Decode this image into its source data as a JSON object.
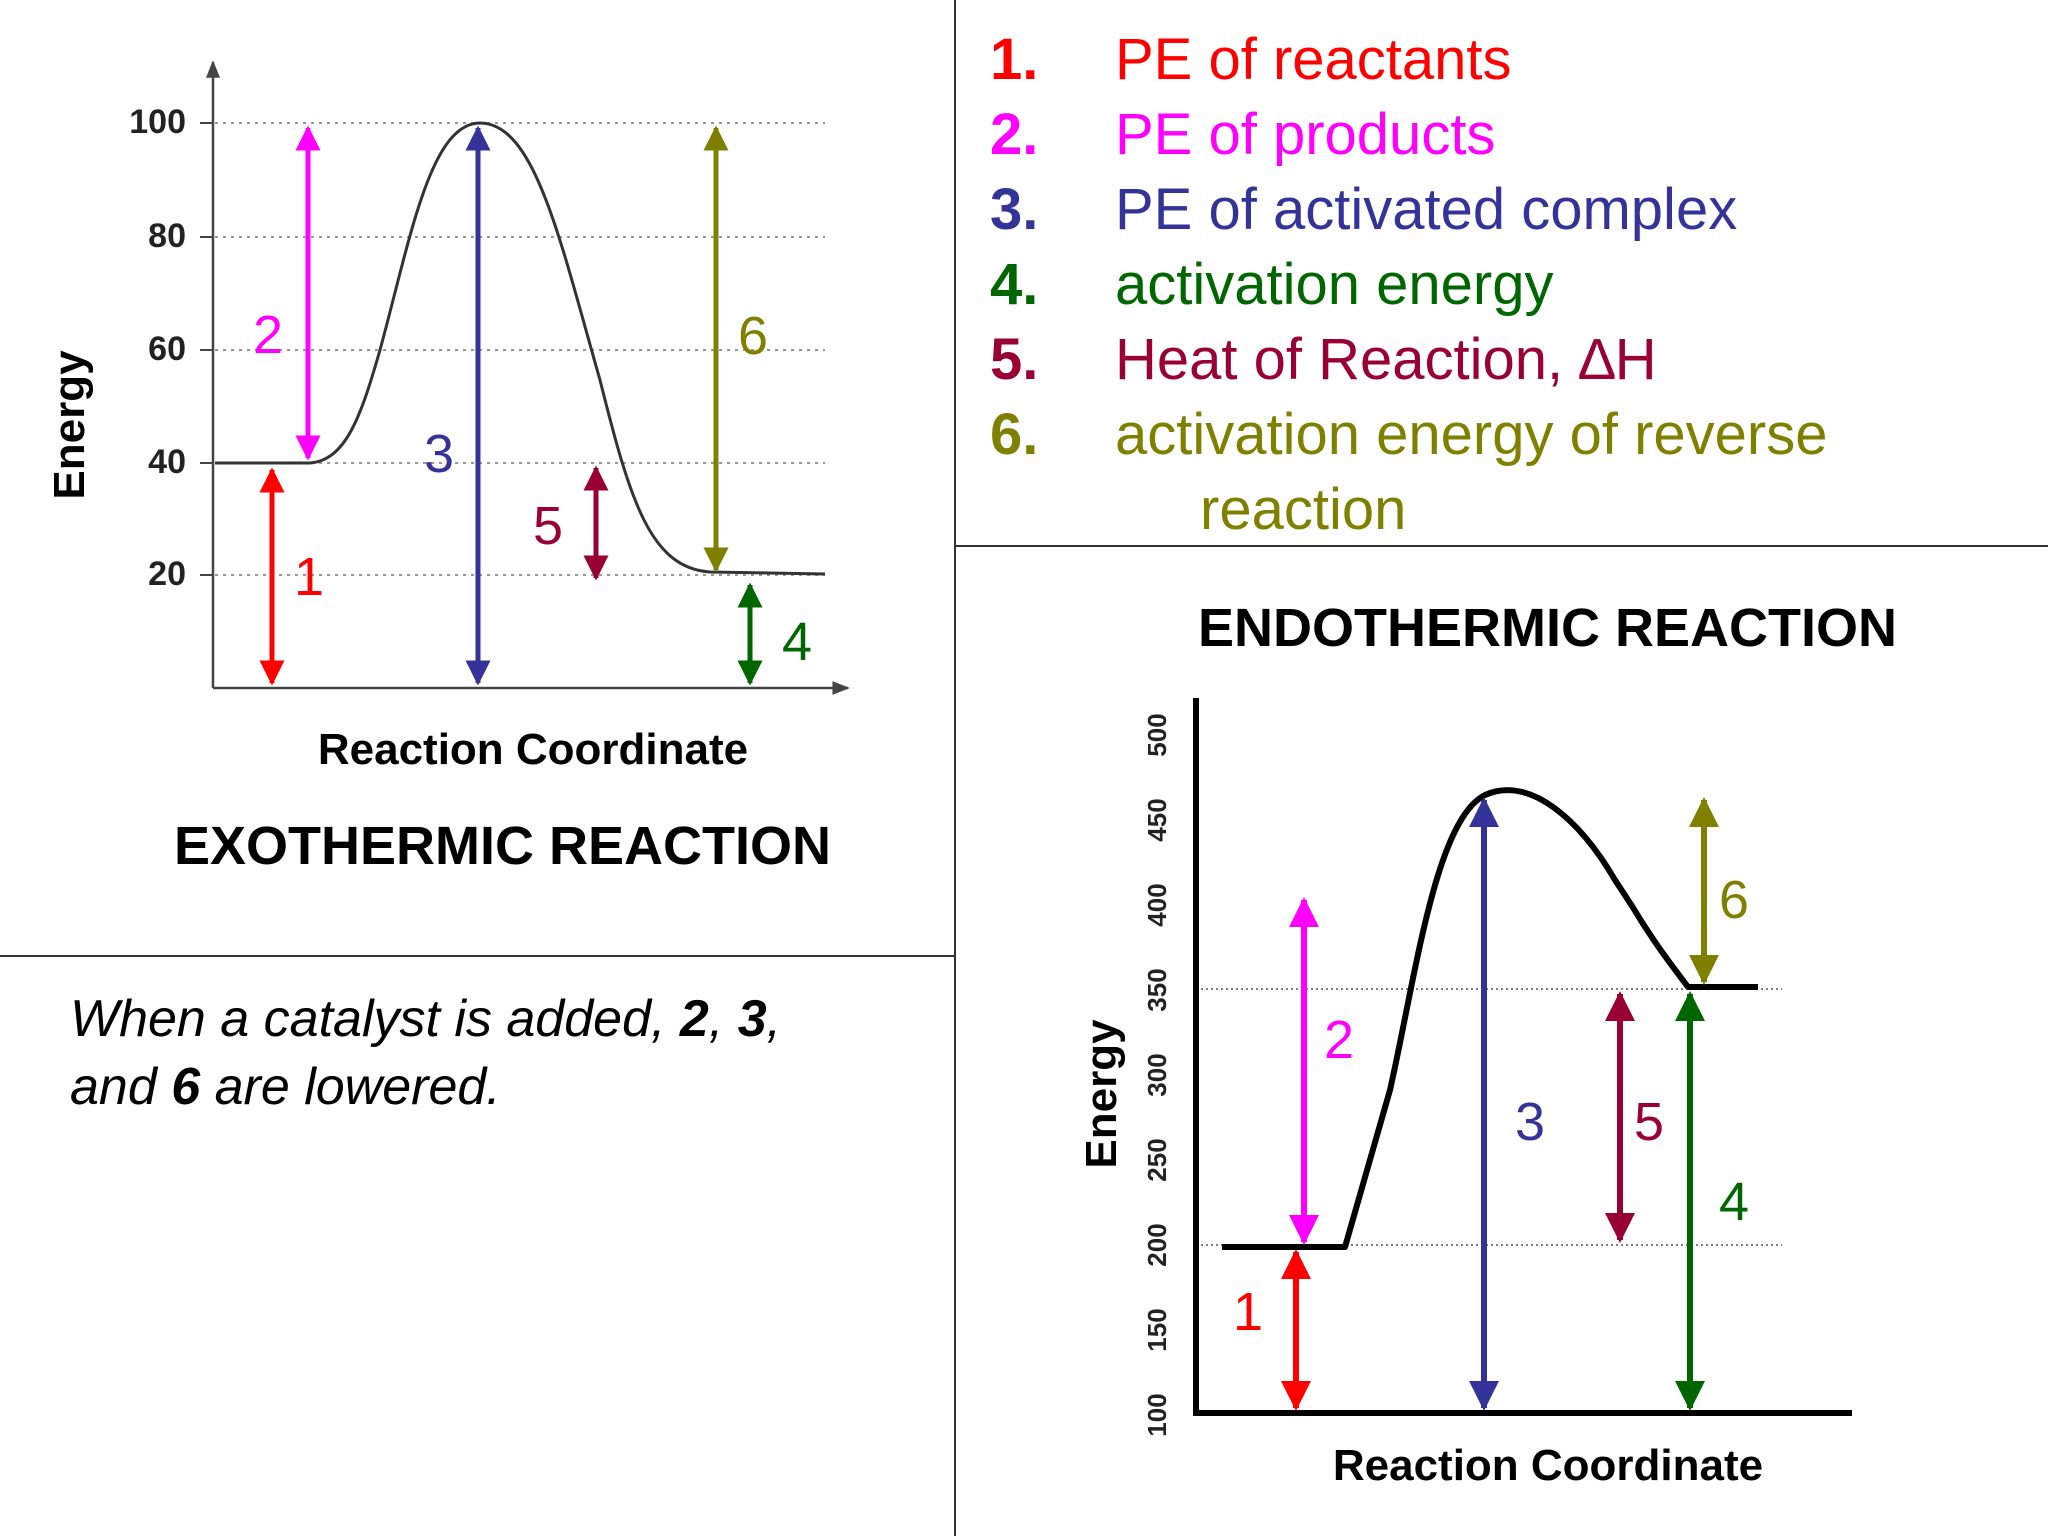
{
  "colors": {
    "red": "#ff0000",
    "magenta": "#ff00ff",
    "blue": "#333399",
    "green": "#006600",
    "maroon": "#990033",
    "olive": "#808000",
    "black": "#000000"
  },
  "legend": [
    {
      "num": "1.",
      "text": "PE of reactants",
      "color": "#ff0000"
    },
    {
      "num": "2.",
      "text": "PE of products",
      "color": "#ff00ff"
    },
    {
      "num": "3.",
      "text": "PE of activated complex",
      "color": "#333399"
    },
    {
      "num": "4.",
      "text": "activation energy",
      "color": "#006600"
    },
    {
      "num": "5.",
      "text": "Heat of Reaction, ∆H",
      "color": "#990033"
    },
    {
      "num": "6.",
      "text": "activation energy of reverse",
      "color": "#808000"
    },
    {
      "num": "",
      "text": "reaction",
      "color": "#808000"
    }
  ],
  "note": {
    "part1": "When a catalyst is added, ",
    "b1": "2",
    "part2": ", ",
    "b2": "3",
    "part3": ",",
    "part4": "and ",
    "b3": "6",
    "part5": " are lowered."
  },
  "exo": {
    "title": "EXOTHERMIC REACTION",
    "xlabel": "Reaction Coordinate",
    "ylabel": "Energy",
    "yticks": [
      "100",
      "80",
      "60",
      "40",
      "20"
    ],
    "arrow_labels": [
      "1",
      "2",
      "3",
      "4",
      "5",
      "6"
    ]
  },
  "endo": {
    "title": "ENDOTHERMIC REACTION",
    "xlabel": "Reaction Coordinate",
    "ylabel": "Energy",
    "yticks": [
      "100",
      "150",
      "200",
      "250",
      "300",
      "350",
      "400",
      "450",
      "500"
    ],
    "arrow_labels": [
      "1",
      "2",
      "3",
      "4",
      "5",
      "6"
    ]
  }
}
